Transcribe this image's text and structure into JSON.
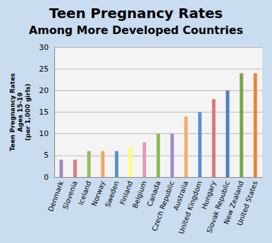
{
  "chart_data": {
    "type": "bar",
    "title": "Teen Pregnancy Rates",
    "subtitle": "Among More Developed Countries",
    "ylabel": "Teen Pregnancy Rates\nAges 15-19\n(per 1,000 girls)",
    "categories": [
      "Denmark",
      "Slovenia",
      "Iceland",
      "Norway",
      "Sweden",
      "Finland",
      "Belgium",
      "Canada",
      "Czech Republic",
      "Australia",
      "United Kingdom",
      "Hungary",
      "Slovak Republic",
      "New Zealand",
      "United States"
    ],
    "values": [
      4,
      4,
      6,
      6,
      6,
      7,
      8,
      10,
      10,
      14,
      15,
      18,
      20,
      24,
      24
    ],
    "colors": [
      "#9d88c4",
      "#d97b7e",
      "#9bbb59",
      "#f2a65e",
      "#5b8fd0",
      "#ffff70",
      "#e79aae",
      "#8fbc55",
      "#a08cc8",
      "#f5ad6a",
      "#5b8ed6",
      "#d9777a",
      "#4f81bd",
      "#7aa54a",
      "#e8823a"
    ],
    "ylim": [
      0,
      30
    ],
    "yticks": [
      0,
      5,
      10,
      15,
      20,
      25,
      30
    ],
    "grid": true
  }
}
